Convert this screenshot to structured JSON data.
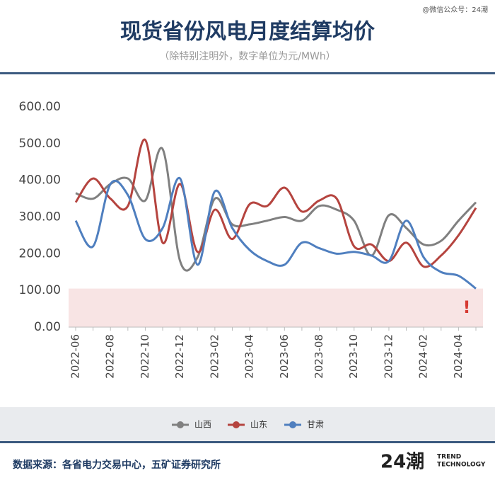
{
  "header": {
    "title": "现货省份风电月度结算均价",
    "subtitle": "（除特别注明外，数字单位为元/MWh）",
    "watermark": "@微信公众号：24潮"
  },
  "chart_data": {
    "type": "line",
    "categories": [
      "2022-06",
      null,
      "2022-08",
      null,
      "2022-10",
      null,
      "2022-12",
      null,
      "2023-02",
      null,
      "2023-04",
      null,
      "2023-06",
      null,
      "2023-08",
      null,
      "2023-10",
      null,
      "2023-12",
      null,
      "2024-02",
      null,
      "2024-04",
      null
    ],
    "series": [
      {
        "name": "山西",
        "color": "#808080",
        "values": [
          365,
          350,
          390,
          405,
          345,
          485,
          180,
          190,
          350,
          280,
          280,
          290,
          300,
          290,
          330,
          320,
          290,
          195,
          305,
          270,
          225,
          235,
          290,
          340
        ]
      },
      {
        "name": "山东",
        "color": "#b5443f",
        "values": [
          340,
          405,
          350,
          330,
          510,
          230,
          390,
          205,
          320,
          240,
          335,
          330,
          380,
          315,
          345,
          350,
          220,
          225,
          180,
          230,
          165,
          195,
          250,
          325
        ]
      },
      {
        "name": "甘肃",
        "color": "#4f7fbf",
        "values": [
          290,
          220,
          390,
          360,
          240,
          270,
          405,
          170,
          370,
          270,
          210,
          180,
          170,
          230,
          215,
          200,
          205,
          195,
          180,
          290,
          190,
          150,
          140,
          105
        ]
      }
    ],
    "ylim": [
      0,
      600
    ],
    "yticks": [
      {
        "value": 0,
        "label": "0.00"
      },
      {
        "value": 100,
        "label": "100.00"
      },
      {
        "value": 200,
        "label": "200.00"
      },
      {
        "value": 300,
        "label": "300.00"
      },
      {
        "value": 400,
        "label": "400.00"
      },
      {
        "value": 500,
        "label": "500.00"
      },
      {
        "value": 600,
        "label": "600.00"
      }
    ],
    "highlight_range": [
      0,
      105
    ],
    "annotation": "!",
    "legend": "bottom"
  },
  "footer": {
    "source": "数据来源：各省电力交易中心，五矿证券研究所",
    "logo": "24潮",
    "logo_text_1": "TREND",
    "logo_text_2": "TECHNOLOGY"
  }
}
